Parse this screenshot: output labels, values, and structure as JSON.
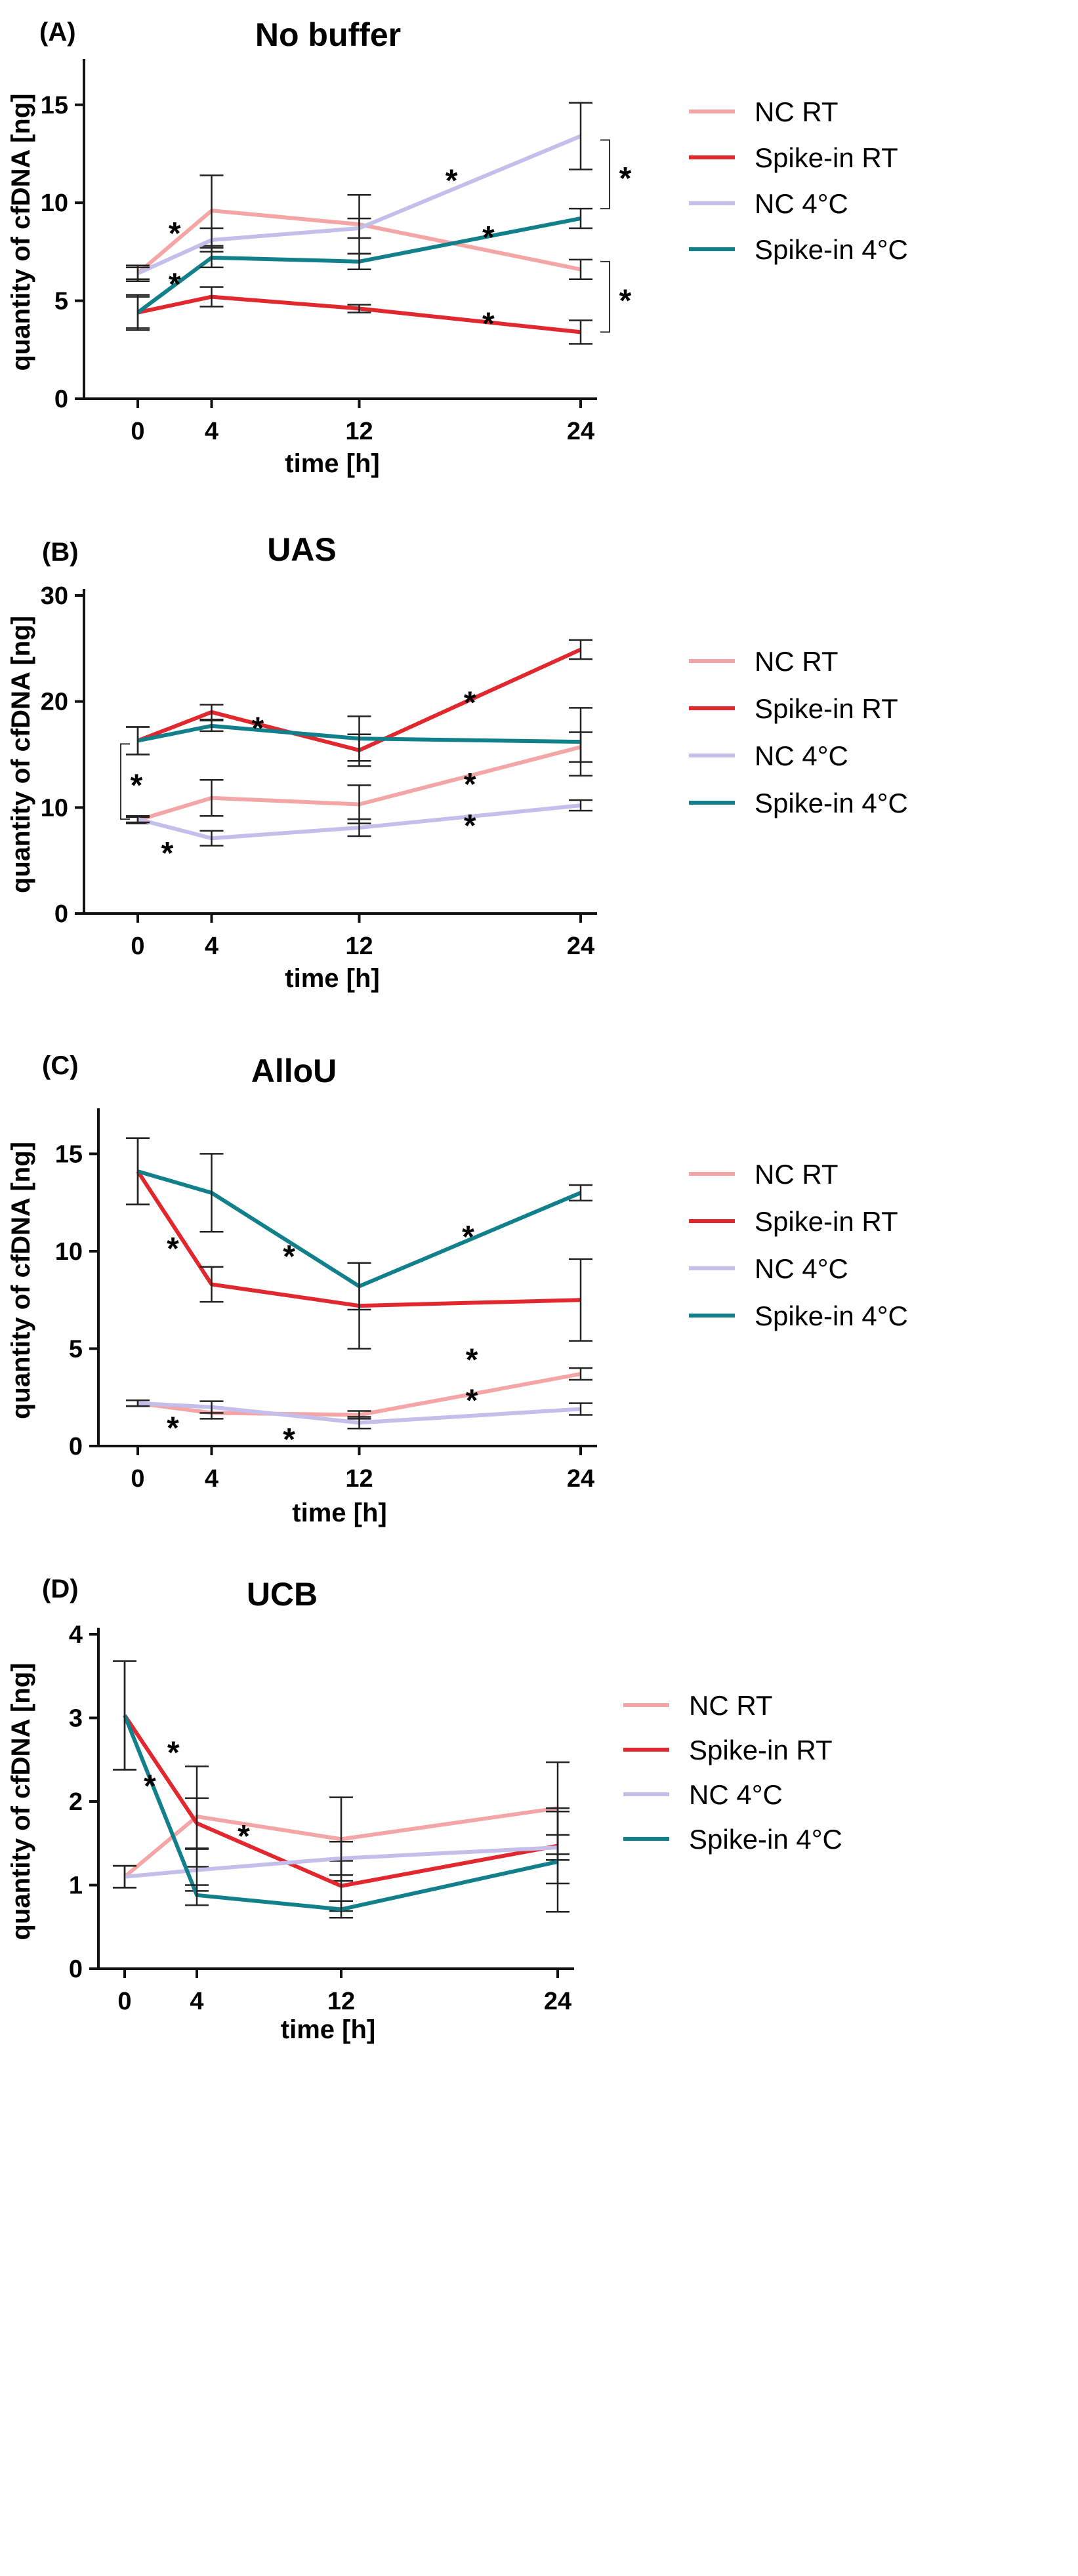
{
  "colors": {
    "nc_rt": "#F4A6A6",
    "spike_rt": "#E0282E",
    "nc_4c": "#C3BEEA",
    "spike_4c": "#11808A",
    "axis": "#111111",
    "errorbar": "#222222"
  },
  "chart_data": [
    {
      "type": "line",
      "panel": "(A)",
      "title": "No buffer",
      "xlabel": "time [h]",
      "ylabel": "quantity of cfDNA [ng]",
      "x": [
        0,
        4,
        12,
        24
      ],
      "x_tick_labels": [
        "0",
        "4",
        "12",
        "24"
      ],
      "ylim": [
        0,
        17
      ],
      "y_ticks": [
        0,
        5,
        10,
        15
      ],
      "y_tick_labels": [
        "0",
        "5",
        "10",
        "15"
      ],
      "legend": [
        "NC RT",
        "Spike-in RT",
        "NC  4°C",
        "Spike-in  4°C"
      ],
      "series": [
        {
          "name": "NC RT",
          "color_key": "nc_rt",
          "values": [
            6.4,
            9.6,
            8.9,
            6.6
          ],
          "err": [
            0.4,
            1.8,
            1.5,
            0.5
          ]
        },
        {
          "name": "Spike-in RT",
          "color_key": "spike_rt",
          "values": [
            4.4,
            5.2,
            4.6,
            3.4
          ],
          "err": [
            0.9,
            0.5,
            0.2,
            0.6
          ]
        },
        {
          "name": "NC  4°C",
          "color_key": "nc_4c",
          "values": [
            6.4,
            8.1,
            8.7,
            13.4
          ],
          "err": [
            0.3,
            0.6,
            0.5,
            1.7
          ]
        },
        {
          "name": "Spike-in  4°C",
          "color_key": "spike_4c",
          "values": [
            4.4,
            7.2,
            7.0,
            9.2
          ],
          "err": [
            0.8,
            0.5,
            0.4,
            0.5
          ]
        }
      ],
      "stars": [
        {
          "label": "*",
          "x": 2.0,
          "y": 8.5
        },
        {
          "label": "*",
          "x": 2.0,
          "y": 5.9
        },
        {
          "label": "*",
          "x": 17.0,
          "y": 11.2
        },
        {
          "label": "*",
          "x": 19.0,
          "y": 8.3
        },
        {
          "label": "*",
          "x": 19.0,
          "y": 3.9
        }
      ],
      "brackets": [
        {
          "label": "*",
          "y_low": 9.7,
          "y_high": 13.2
        },
        {
          "label": "*",
          "y_low": 3.4,
          "y_high": 7.0
        }
      ]
    },
    {
      "type": "line",
      "panel": "(B)",
      "title": "UAS",
      "xlabel": "time [h]",
      "ylabel": "quantity of cfDNA [ng]",
      "x": [
        0,
        4,
        12,
        24
      ],
      "x_tick_labels": [
        "0",
        "4",
        "12",
        "24"
      ],
      "ylim": [
        0,
        30
      ],
      "y_ticks": [
        0,
        10,
        20,
        30
      ],
      "y_tick_labels": [
        "0",
        "10",
        "20",
        "30"
      ],
      "legend": [
        "NC RT",
        "Spike-in RT",
        "NC  4°C",
        "Spike-in  4°C"
      ],
      "series": [
        {
          "name": "NC RT",
          "color_key": "nc_rt",
          "values": [
            8.8,
            10.9,
            10.3,
            15.7
          ],
          "err": [
            0.3,
            1.7,
            1.8,
            1.4
          ]
        },
        {
          "name": "Spike-in RT",
          "color_key": "spike_rt",
          "values": [
            16.3,
            19.0,
            15.4,
            24.9
          ],
          "err": [
            1.3,
            0.7,
            1.5,
            0.9
          ]
        },
        {
          "name": "NC  4°C",
          "color_key": "nc_4c",
          "values": [
            8.9,
            7.1,
            8.1,
            10.2
          ],
          "err": [
            0.3,
            0.7,
            0.8,
            0.5
          ]
        },
        {
          "name": "Spike-in  4°C",
          "color_key": "spike_4c",
          "values": [
            16.3,
            17.7,
            16.5,
            16.2
          ],
          "err": [
            1.3,
            0.5,
            2.1,
            3.2
          ]
        }
      ],
      "stars": [
        {
          "label": "*",
          "x": 6.5,
          "y": 17.6
        },
        {
          "label": "*",
          "x": 18.0,
          "y": 20.0
        },
        {
          "label": "*",
          "x": 18.0,
          "y": 12.3
        },
        {
          "label": "*",
          "x": 18.0,
          "y": 8.4
        },
        {
          "label": "*",
          "x": 1.6,
          "y": 5.8
        }
      ],
      "brackets_left": [
        {
          "label": "*",
          "y_low": 8.9,
          "y_high": 16.0
        }
      ]
    },
    {
      "type": "line",
      "panel": "(C)",
      "title": "AlloU",
      "xlabel": "time [h]",
      "ylabel": "quantity of cfDNA [ng]",
      "x": [
        0,
        4,
        12,
        24
      ],
      "x_tick_labels": [
        "0",
        "4",
        "12",
        "24"
      ],
      "ylim": [
        0,
        17
      ],
      "y_ticks": [
        0,
        5,
        10,
        15
      ],
      "y_tick_labels": [
        "0",
        "5",
        "10",
        "15"
      ],
      "legend": [
        "NC RT",
        "Spike-in RT",
        "NC  4°C",
        "Spike-in   4°C"
      ],
      "series": [
        {
          "name": "NC RT",
          "color_key": "nc_rt",
          "values": [
            2.2,
            1.7,
            1.6,
            3.7
          ],
          "err": [
            0.15,
            0.3,
            0.2,
            0.3
          ]
        },
        {
          "name": "Spike-in RT",
          "color_key": "spike_rt",
          "values": [
            14.1,
            8.3,
            7.2,
            7.5
          ],
          "err": [
            1.7,
            0.9,
            2.2,
            2.1
          ]
        },
        {
          "name": "NC  4°C",
          "color_key": "nc_4c",
          "values": [
            2.2,
            2.0,
            1.2,
            1.9
          ],
          "err": [
            0.15,
            0.3,
            0.3,
            0.3
          ]
        },
        {
          "name": "Spike-in   4°C",
          "color_key": "spike_4c",
          "values": [
            14.1,
            13.0,
            8.2,
            13.0
          ],
          "err": [
            1.7,
            2.0,
            1.2,
            0.4
          ]
        }
      ],
      "stars": [
        {
          "label": "*",
          "x": 1.9,
          "y": 10.2
        },
        {
          "label": "*",
          "x": 8.2,
          "y": 9.8
        },
        {
          "label": "*",
          "x": 17.9,
          "y": 10.8
        },
        {
          "label": "*",
          "x": 1.9,
          "y": 1.0
        },
        {
          "label": "*",
          "x": 8.2,
          "y": 0.4
        },
        {
          "label": "*",
          "x": 18.1,
          "y": 4.5
        },
        {
          "label": "*",
          "x": 18.1,
          "y": 2.4
        }
      ]
    },
    {
      "type": "line",
      "panel": "(D)",
      "title": "UCB",
      "xlabel": "time [h]",
      "ylabel": "quantity of cfDNA [ng]",
      "x": [
        0,
        4,
        12,
        24
      ],
      "x_tick_labels": [
        "0",
        "4",
        "12",
        "24"
      ],
      "ylim": [
        0,
        4
      ],
      "y_ticks": [
        0,
        1,
        2,
        3,
        4
      ],
      "y_tick_labels": [
        "0",
        "1",
        "2",
        "3",
        "4"
      ],
      "legend": [
        "NC RT",
        "Spike-in RT",
        "NC  4°C",
        "Spike-in   4°C"
      ],
      "series": [
        {
          "name": "NC RT",
          "color_key": "nc_rt",
          "values": [
            1.1,
            1.82,
            1.55,
            1.92
          ],
          "err": [
            0.13,
            0.6,
            0.5,
            0.55
          ]
        },
        {
          "name": "Spike-in RT",
          "color_key": "spike_rt",
          "values": [
            3.03,
            1.74,
            0.99,
            1.47
          ],
          "err": [
            0.65,
            0.3,
            0.3,
            0.45
          ]
        },
        {
          "name": "NC  4°C",
          "color_key": "nc_4c",
          "values": [
            1.1,
            1.18,
            1.32,
            1.45
          ],
          "err": [
            0.13,
            0.25,
            0.2,
            0.15
          ]
        },
        {
          "name": "Spike-in   4°C",
          "color_key": "spike_4c",
          "values": [
            3.03,
            0.88,
            0.71,
            1.28
          ],
          "err": [
            0.65,
            0.12,
            0.1,
            0.6
          ]
        }
      ],
      "stars": [
        {
          "label": "*",
          "x": 2.7,
          "y": 2.6
        },
        {
          "label": "*",
          "x": 1.4,
          "y": 2.2
        },
        {
          "label": "*",
          "x": 6.6,
          "y": 1.6
        }
      ]
    }
  ]
}
